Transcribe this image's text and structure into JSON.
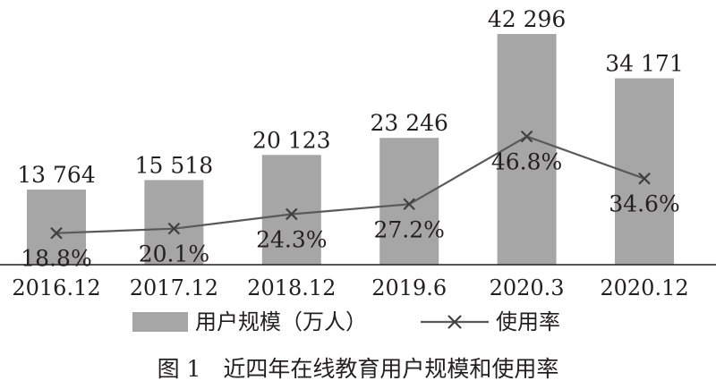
{
  "chart_data": {
    "type": "bar",
    "title": "图 1　近四年在线教育用户规模和使用率",
    "categories": [
      "2016.12",
      "2017.12",
      "2018.12",
      "2019.6",
      "2020.3",
      "2020.12"
    ],
    "series": [
      {
        "name": "用户规模（万人）",
        "type": "bar",
        "values": [
          13764,
          15518,
          20123,
          23246,
          42296,
          34171
        ],
        "labels": [
          "13 764",
          "15 518",
          "20 123",
          "23 246",
          "42 296",
          "34 171"
        ]
      },
      {
        "name": "使用率",
        "type": "line",
        "values": [
          18.8,
          20.1,
          24.3,
          27.2,
          46.8,
          34.6
        ],
        "labels": [
          "18.8%",
          "20.1%",
          "24.3%",
          "27.2%",
          "46.8%",
          "34.6%"
        ]
      }
    ],
    "legend": {
      "position": "bottom"
    },
    "grid": false,
    "colors": {
      "bar": "#a6a6a6",
      "line": "#595959"
    }
  }
}
